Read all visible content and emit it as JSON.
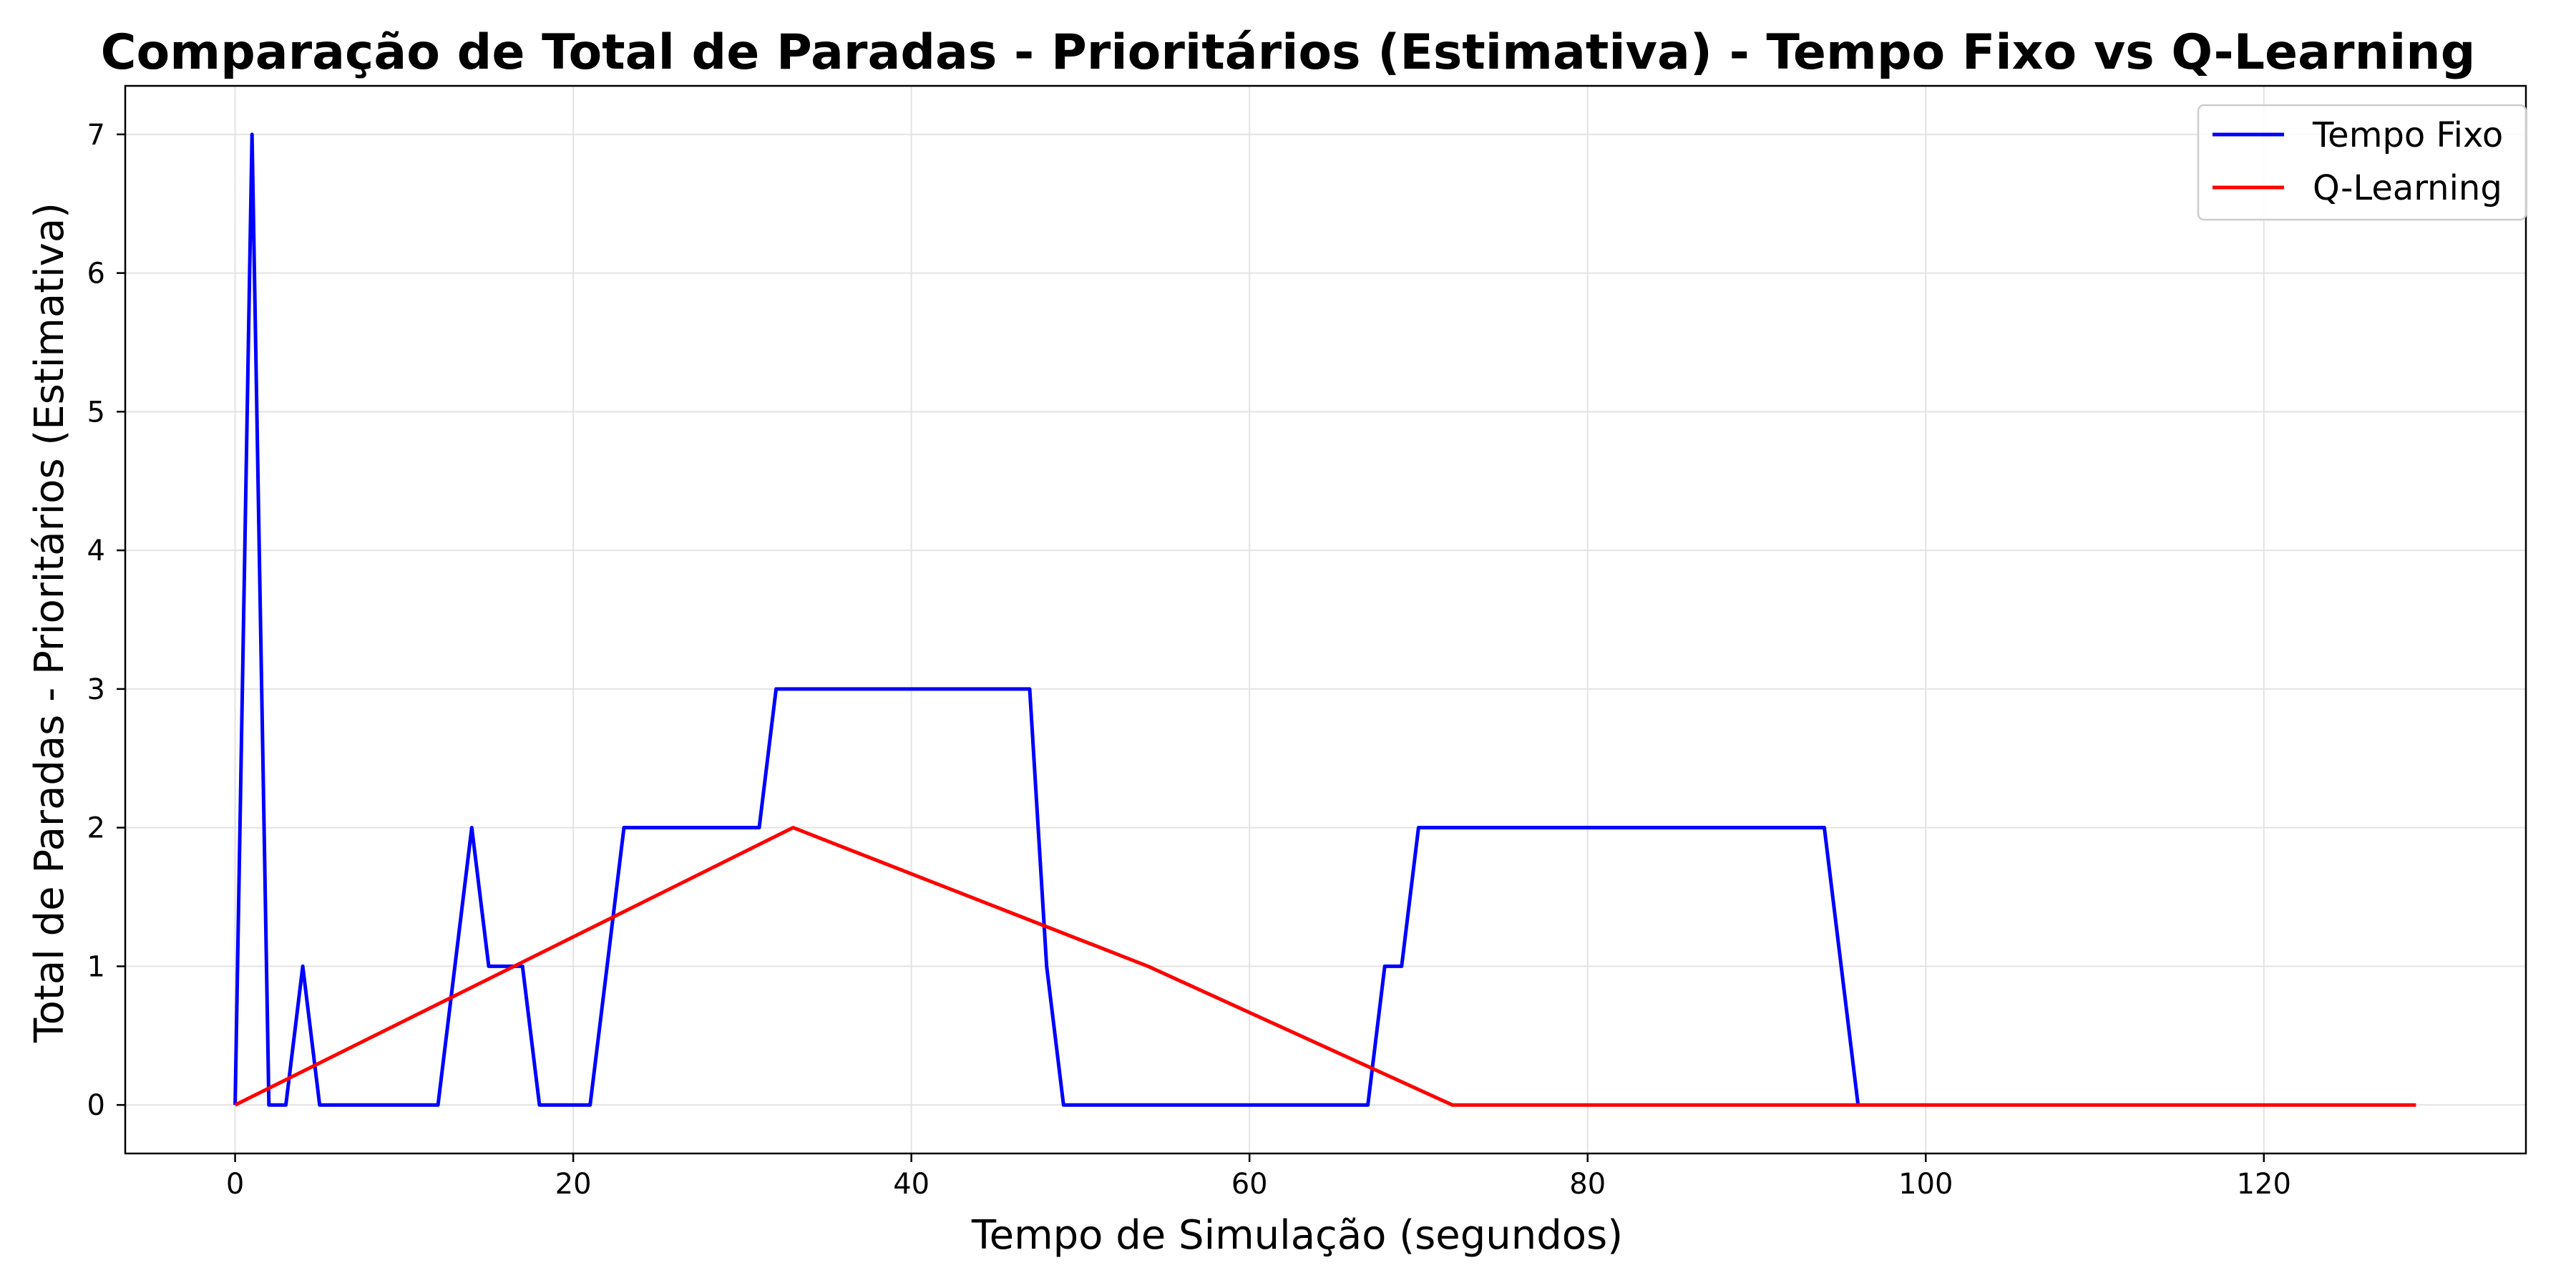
{
  "chart_data": {
    "type": "line",
    "title": "Comparação de Total de Paradas - Prioritários (Estimativa) - Tempo Fixo vs Q-Learning",
    "xlabel": "Tempo de Simulação (segundos)",
    "ylabel": "Total de Paradas - Prioritários (Estimativa)",
    "xlim": [
      -6.5,
      135.5
    ],
    "ylim": [
      -0.35,
      7.35
    ],
    "xticks": [
      0,
      20,
      40,
      60,
      80,
      100,
      120
    ],
    "yticks": [
      0,
      1,
      2,
      3,
      4,
      5,
      6,
      7
    ],
    "grid": true,
    "legend_position": "top-right",
    "series": [
      {
        "name": "Tempo Fixo",
        "color": "#0000ff",
        "x": [
          0,
          1,
          2,
          3,
          4,
          5,
          6,
          7,
          8,
          9,
          10,
          11,
          12,
          13,
          14,
          15,
          16,
          17,
          18,
          19,
          20,
          21,
          22,
          23,
          24,
          25,
          26,
          27,
          28,
          29,
          30,
          31,
          32,
          33,
          34,
          35,
          36,
          37,
          38,
          39,
          40,
          41,
          42,
          43,
          44,
          45,
          46,
          47,
          48,
          49,
          50,
          51,
          52,
          53,
          54,
          55,
          56,
          57,
          58,
          59,
          60,
          61,
          62,
          63,
          64,
          65,
          66,
          67,
          68,
          69,
          70,
          71,
          72,
          73,
          74,
          75,
          76,
          77,
          78,
          79,
          80,
          81,
          82,
          83,
          84,
          85,
          86,
          87,
          88,
          89,
          90,
          91,
          92,
          93,
          94,
          95,
          96
        ],
        "y": [
          0,
          7,
          0,
          0,
          1,
          0,
          0,
          0,
          0,
          0,
          0,
          0,
          0,
          1,
          2,
          1,
          1,
          1,
          0,
          0,
          0,
          0,
          1,
          2,
          2,
          2,
          2,
          2,
          2,
          2,
          2,
          2,
          3,
          3,
          3,
          3,
          3,
          3,
          3,
          3,
          3,
          3,
          3,
          3,
          3,
          3,
          3,
          3,
          1,
          0,
          0,
          0,
          0,
          0,
          0,
          0,
          0,
          0,
          0,
          0,
          0,
          0,
          0,
          0,
          0,
          0,
          0,
          0,
          1,
          1,
          2,
          2,
          2,
          2,
          2,
          2,
          2,
          2,
          2,
          2,
          2,
          2,
          2,
          2,
          2,
          2,
          2,
          2,
          2,
          2,
          2,
          2,
          2,
          2,
          2,
          1,
          0
        ]
      },
      {
        "name": "Q-Learning",
        "color": "#ff0000",
        "x": [
          0,
          33,
          54,
          72,
          129
        ],
        "y": [
          0,
          2,
          1,
          0,
          0
        ]
      }
    ]
  }
}
